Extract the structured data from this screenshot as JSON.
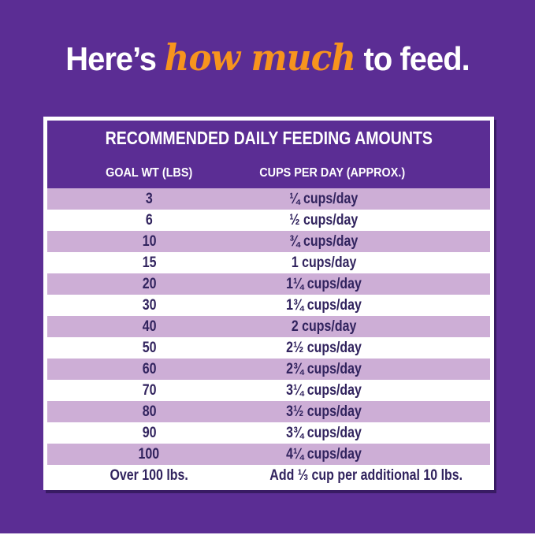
{
  "heading": {
    "prefix": "Here’s",
    "highlight": "how much",
    "suffix": "to feed."
  },
  "table": {
    "title": "RECOMMENDED DAILY FEEDING AMOUNTS",
    "columns": [
      "GOAL WT (LBS)",
      "CUPS PER DAY (APPROX.)"
    ]
  },
  "chart_data": {
    "type": "table",
    "title": "RECOMMENDED DAILY FEEDING AMOUNTS",
    "columns": [
      "GOAL WT (LBS)",
      "CUPS PER DAY (APPROX.)"
    ],
    "rows": [
      [
        "3",
        "¼ cups/day"
      ],
      [
        "6",
        "½ cups/day"
      ],
      [
        "10",
        "¾ cups/day"
      ],
      [
        "15",
        "1 cups/day"
      ],
      [
        "20",
        "1¼ cups/day"
      ],
      [
        "30",
        "1¾ cups/day"
      ],
      [
        "40",
        "2 cups/day"
      ],
      [
        "50",
        "2½ cups/day"
      ],
      [
        "60",
        "2¾ cups/day"
      ],
      [
        "70",
        "3¼ cups/day"
      ],
      [
        "80",
        "3½ cups/day"
      ],
      [
        "90",
        "3¾ cups/day"
      ],
      [
        "100",
        "4¼ cups/day"
      ],
      [
        "Over 100 lbs.",
        "Add ⅓ cup per additional 10 lbs."
      ]
    ]
  },
  "colors": {
    "background_purple": "#5B2D94",
    "row_lavender": "#CDAED6",
    "row_text": "#31235E",
    "highlight_orange": "#F7941E",
    "header_text": "#FFFFFF"
  }
}
